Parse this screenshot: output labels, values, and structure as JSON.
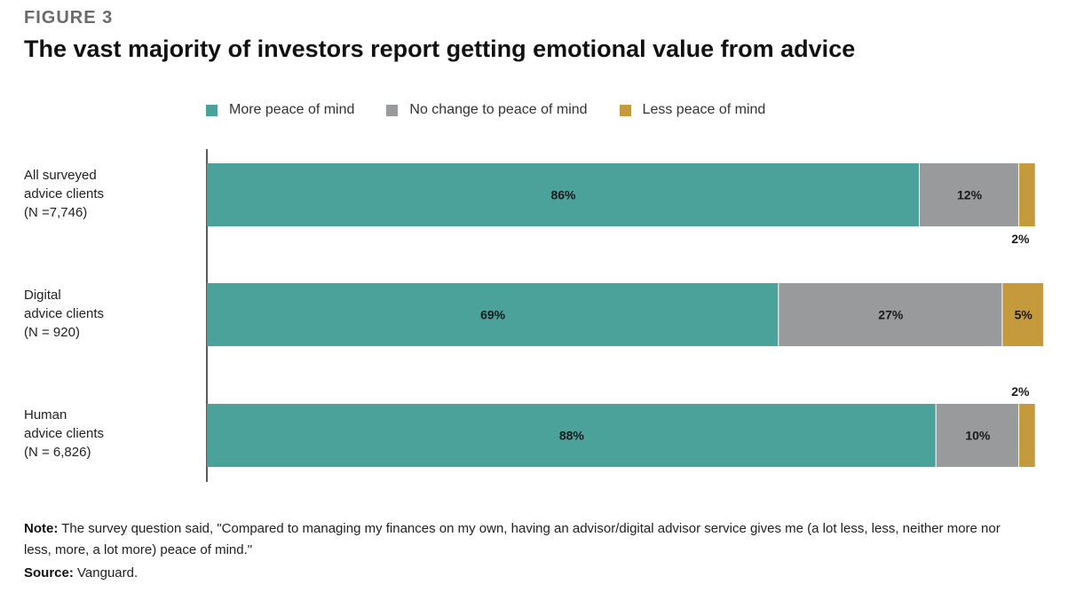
{
  "figure_label": "FIGURE 3",
  "chart_data": {
    "type": "bar",
    "orientation": "horizontal",
    "stacked": true,
    "title": "The vast majority of investors report getting emotional value from advice",
    "categories": [
      "All surveyed\nadvice clients\n(N =7,746)",
      "Digital\nadvice clients\n(N = 920)",
      "Human\nadvice clients\n(N = 6,826)"
    ],
    "series": [
      {
        "name": "More peace of mind",
        "color": "#4aa29b",
        "values": [
          86,
          69,
          88
        ]
      },
      {
        "name": "No change to peace of mind",
        "color": "#999a9c",
        "values": [
          12,
          27,
          10
        ]
      },
      {
        "name": "Less peace of mind",
        "color": "#c49a3c",
        "values": [
          2,
          5,
          2
        ]
      }
    ],
    "data_labels": [
      [
        "86%",
        "12%",
        "2%"
      ],
      [
        "69%",
        "27%",
        "5%"
      ],
      [
        "88%",
        "10%",
        "2%"
      ]
    ],
    "xlim": [
      0,
      100
    ],
    "legend_position": "top",
    "grid": false
  },
  "note_label": "Note:",
  "note_text": "The survey question said, \"Compared to managing my finances on my own, having an advisor/digital advisor service gives me (a lot less, less, neither more nor less, more, a lot more) peace of mind.\"",
  "source_label": "Source:",
  "source_text": "Vanguard."
}
